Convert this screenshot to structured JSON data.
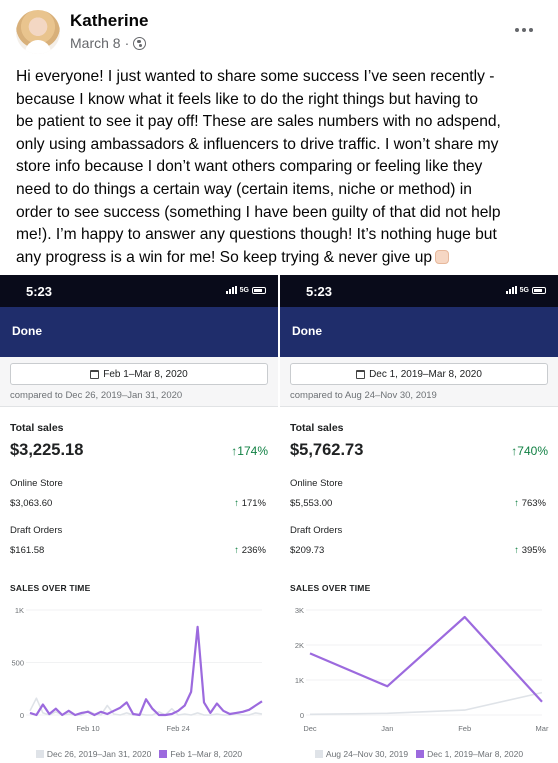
{
  "post": {
    "author": "Katherine",
    "date": "March 8",
    "separator": "·",
    "audience_icon": "globe-icon",
    "more_icon": "more-dots-icon",
    "text_lines": [
      "Hi everyone! I just wanted to share some success I’ve seen recently -",
      "because I know what it feels like to do the right things but having to",
      "be patient to see it pay off! These are sales numbers with no adspend,",
      "only using ambassadors & influencers to drive traffic. I won’t share my",
      "store info because I don’t want others comparing or feeling like they",
      "need to do things a certain way (certain items, niche or method) in",
      "order to see success (something I have been guilty of that did not help",
      "me!). I’m happy to answer any questions though! It’s nothing huge but",
      "any progress is a win for me! So keep trying & never give up"
    ],
    "emoji_icon": "raising-hands-emoji"
  },
  "colors": {
    "status_bar": "#090b1a",
    "navbar": "#1f2d6b",
    "positive": "#108043",
    "current_series": "#9c6ade",
    "compare_series": "#dfe3e8"
  },
  "screenshots": [
    {
      "status_time": "5:23",
      "network": "5G",
      "done_label": "Done",
      "date_range": "Feb 1–Mar 8, 2020",
      "compared_to": "compared to Dec 26, 2019–Jan 31, 2020",
      "total_sales_label": "Total sales",
      "total_sales": "$3,225.18",
      "total_change": "174%",
      "rows": [
        {
          "label": "Online Store",
          "value": "$3,063.60",
          "change": "171%"
        },
        {
          "label": "Draft Orders",
          "value": "$161.58",
          "change": "236%"
        }
      ],
      "sales_over_time_label": "SALES OVER TIME",
      "legend": [
        "Dec 26, 2019–Jan 31, 2020",
        "Feb 1–Mar 8, 2020"
      ]
    },
    {
      "status_time": "5:23",
      "network": "5G",
      "done_label": "Done",
      "date_range": "Dec 1, 2019–Mar 8, 2020",
      "compared_to": "compared to Aug 24–Nov 30, 2019",
      "total_sales_label": "Total sales",
      "total_sales": "$5,762.73",
      "total_change": "740%",
      "rows": [
        {
          "label": "Online Store",
          "value": "$5,553.00",
          "change": "763%"
        },
        {
          "label": "Draft Orders",
          "value": "$209.73",
          "change": "395%"
        }
      ],
      "sales_over_time_label": "SALES OVER TIME",
      "legend": [
        "Aug 24–Nov 30, 2019",
        "Dec 1, 2019–Mar 8, 2020"
      ]
    }
  ],
  "chart_data": [
    {
      "type": "line",
      "y_ticks": [
        "1K",
        "500",
        "0"
      ],
      "ylim": [
        0,
        1000
      ],
      "x_tick_labels": [
        "Feb 10",
        "Feb 24"
      ],
      "x_tick_days": [
        9,
        23
      ],
      "x_count": 37,
      "series": [
        {
          "name": "Dec 26, 2019–Jan 31, 2020",
          "values": [
            40,
            160,
            20,
            0,
            30,
            0,
            10,
            0,
            0,
            40,
            10,
            0,
            90,
            10,
            0,
            20,
            0,
            10,
            0,
            0,
            30,
            0,
            60,
            0,
            10,
            0,
            20,
            0,
            0,
            10,
            0,
            0,
            10,
            0,
            0,
            20,
            10
          ]
        },
        {
          "name": "Feb 1–Mar 8, 2020",
          "values": [
            20,
            0,
            100,
            10,
            60,
            0,
            40,
            0,
            20,
            30,
            0,
            30,
            10,
            40,
            70,
            120,
            10,
            0,
            150,
            60,
            0,
            0,
            10,
            40,
            90,
            220,
            840,
            120,
            20,
            110,
            40,
            10,
            20,
            30,
            50,
            90,
            130
          ]
        }
      ]
    },
    {
      "type": "line",
      "y_ticks": [
        "3K",
        "2K",
        "1K",
        "0"
      ],
      "ylim": [
        0,
        3000
      ],
      "categories": [
        "Dec",
        "Jan",
        "Feb",
        "Mar"
      ],
      "series": [
        {
          "name": "Aug 24–Nov 30, 2019",
          "values": [
            20,
            50,
            140,
            640
          ]
        },
        {
          "name": "Dec 1, 2019–Mar 8, 2020",
          "values": [
            1760,
            820,
            2800,
            380
          ]
        }
      ]
    }
  ]
}
